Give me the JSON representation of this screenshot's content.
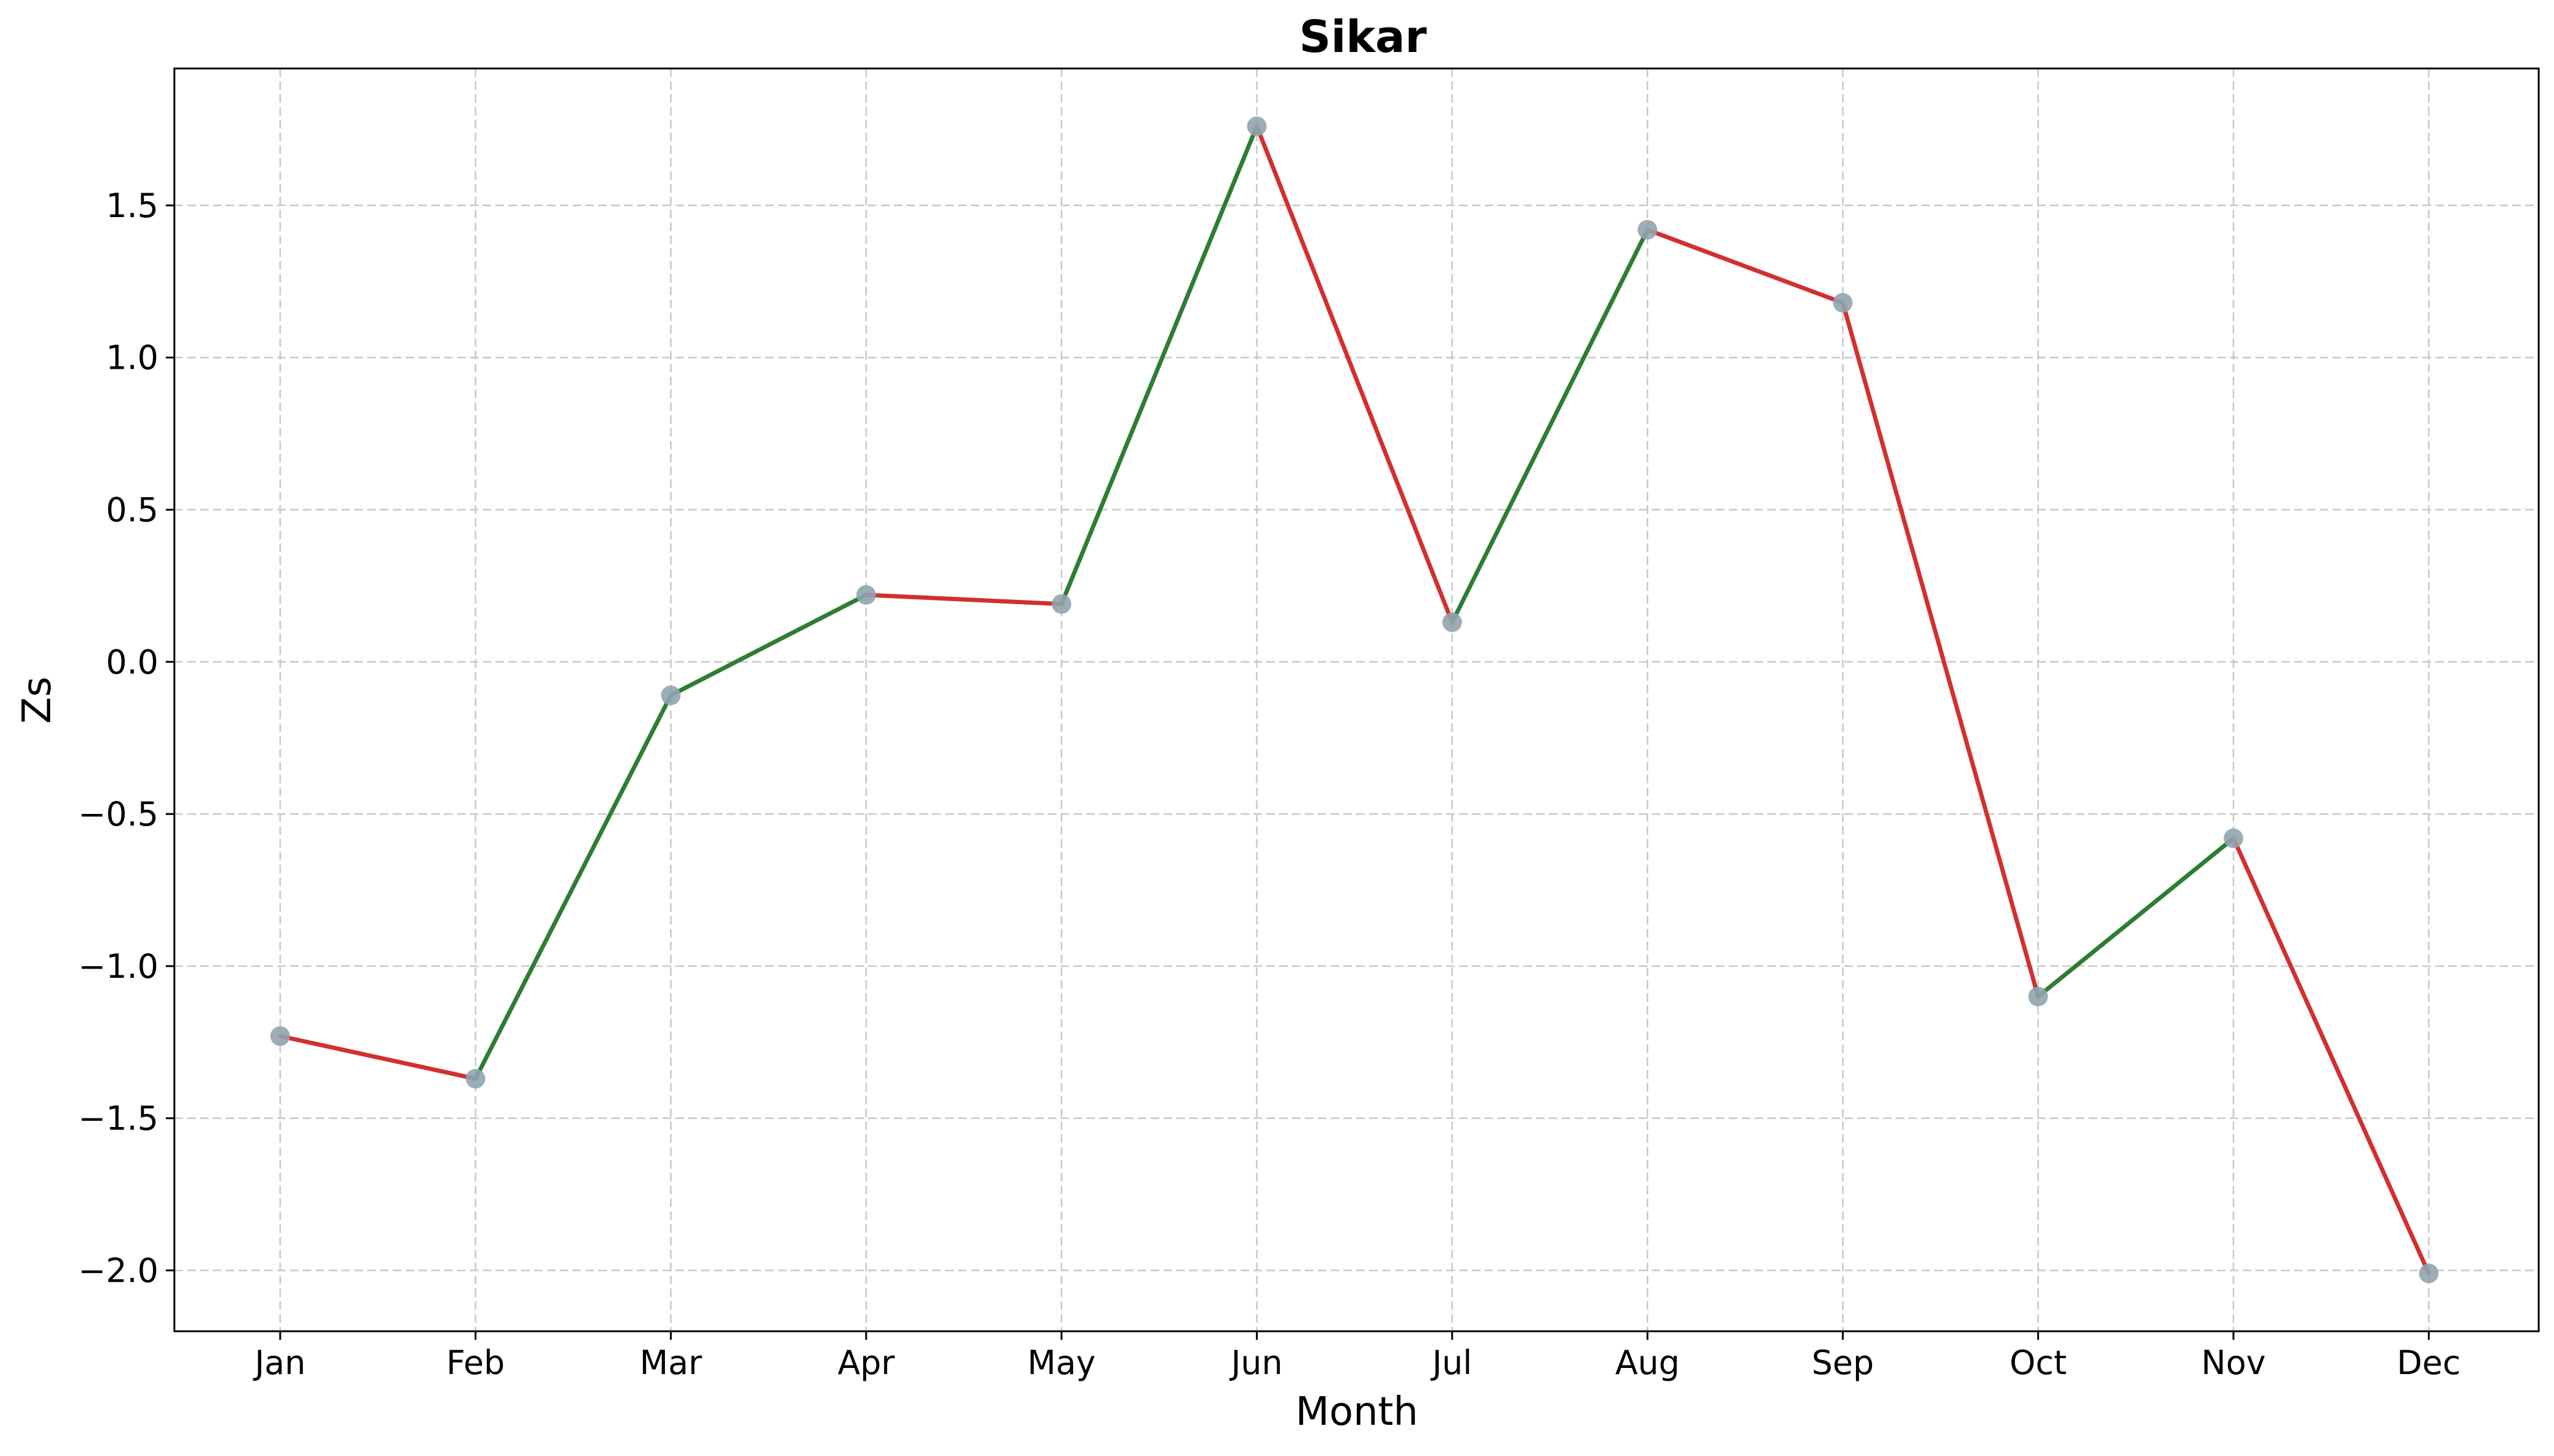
{
  "chart_data": {
    "type": "line",
    "title": "Sikar",
    "xlabel": "Month",
    "ylabel": "Zs",
    "categories": [
      "Jan",
      "Feb",
      "Mar",
      "Apr",
      "May",
      "Jun",
      "Jul",
      "Aug",
      "Sep",
      "Oct",
      "Nov",
      "Dec"
    ],
    "series": [
      {
        "values": [
          -1.23,
          -1.37,
          -0.11,
          0.22,
          0.19,
          1.76,
          0.13,
          1.42,
          1.18,
          -1.1,
          -0.58,
          -2.01
        ]
      }
    ],
    "ylim": [
      -2.2,
      1.95
    ],
    "yticks": [
      -2.0,
      -1.5,
      -1.0,
      -0.5,
      0.0,
      0.5,
      1.0,
      1.5
    ],
    "ytick_labels": [
      "−2.0",
      "−1.5",
      "−1.0",
      "−0.5",
      "0.0",
      "0.5",
      "1.0",
      "1.5"
    ],
    "grid": true,
    "colors": {
      "increase": "#2e7d32",
      "decrease": "#d32f2f",
      "marker": "#90a4ae",
      "grid": "#c8c8c8"
    }
  }
}
